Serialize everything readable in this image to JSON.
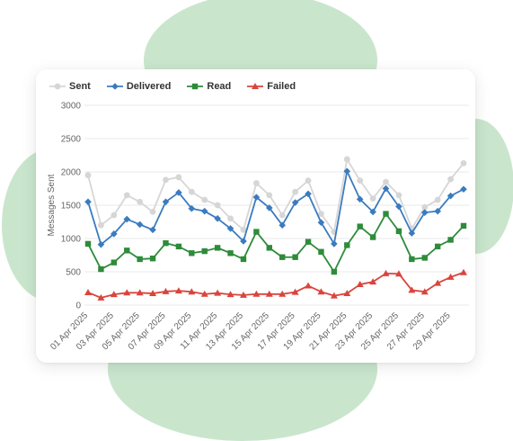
{
  "chart_data": {
    "type": "line",
    "xlabel": "",
    "ylabel": "Messages Sent",
    "ylim": [
      0,
      3000
    ],
    "yticks": [
      0,
      500,
      1000,
      1500,
      2000,
      2500,
      3000
    ],
    "grid": "horizontal",
    "legend_position": "top-left",
    "categories": [
      "01 Apr 2025",
      "02 Apr 2025",
      "03 Apr 2025",
      "04 Apr 2025",
      "05 Apr 2025",
      "06 Apr 2025",
      "07 Apr 2025",
      "08 Apr 2025",
      "09 Apr 2025",
      "10 Apr 2025",
      "11 Apr 2025",
      "12 Apr 2025",
      "13 Apr 2025",
      "14 Apr 2025",
      "15 Apr 2025",
      "16 Apr 2025",
      "17 Apr 2025",
      "18 Apr 2025",
      "19 Apr 2025",
      "20 Apr 2025",
      "21 Apr 2025",
      "22 Apr 2025",
      "23 Apr 2025",
      "24 Apr 2025",
      "25 Apr 2025",
      "26 Apr 2025",
      "27 Apr 2025",
      "28 Apr 2025",
      "29 Apr 2025",
      "30 Apr 2025"
    ],
    "tick_labels": [
      "01 Apr 2025",
      "03 Apr 2025",
      "05 Apr 2025",
      "07 Apr 2025",
      "09 Apr 2025",
      "11 Apr 2025",
      "13 Apr 2025",
      "15 Apr 2025",
      "17 Apr 2025",
      "19 Apr 2025",
      "21 Apr 2025",
      "23 Apr 2025",
      "25 Apr 2025",
      "27 Apr 2025",
      "29 Apr 2025"
    ],
    "series": [
      {
        "name": "Sent",
        "color": "#d6d6d6",
        "marker": "circle",
        "values": [
          1950,
          1200,
          1350,
          1650,
          1550,
          1400,
          1880,
          1920,
          1700,
          1580,
          1500,
          1300,
          1130,
          1830,
          1650,
          1350,
          1700,
          1870,
          1370,
          1100,
          2190,
          1870,
          1600,
          1850,
          1650,
          1150,
          1470,
          1580,
          1890,
          2130
        ]
      },
      {
        "name": "Delivered",
        "color": "#3b7bbf",
        "marker": "diamond",
        "values": [
          1550,
          910,
          1070,
          1290,
          1210,
          1130,
          1550,
          1690,
          1450,
          1410,
          1300,
          1150,
          960,
          1620,
          1460,
          1200,
          1540,
          1670,
          1240,
          920,
          2010,
          1590,
          1400,
          1750,
          1480,
          1080,
          1390,
          1410,
          1640,
          1740
        ]
      },
      {
        "name": "Read",
        "color": "#2e8b3a",
        "marker": "square",
        "values": [
          920,
          540,
          640,
          820,
          690,
          700,
          930,
          880,
          780,
          810,
          860,
          780,
          690,
          1100,
          860,
          720,
          720,
          950,
          800,
          500,
          900,
          1180,
          1020,
          1370,
          1110,
          690,
          710,
          880,
          980,
          1190
        ]
      },
      {
        "name": "Failed",
        "color": "#d9453d",
        "marker": "triangle",
        "values": [
          190,
          110,
          160,
          185,
          185,
          175,
          205,
          215,
          200,
          165,
          180,
          160,
          150,
          165,
          165,
          165,
          195,
          290,
          200,
          140,
          175,
          310,
          350,
          475,
          470,
          225,
          200,
          330,
          420,
          490
        ]
      }
    ]
  }
}
